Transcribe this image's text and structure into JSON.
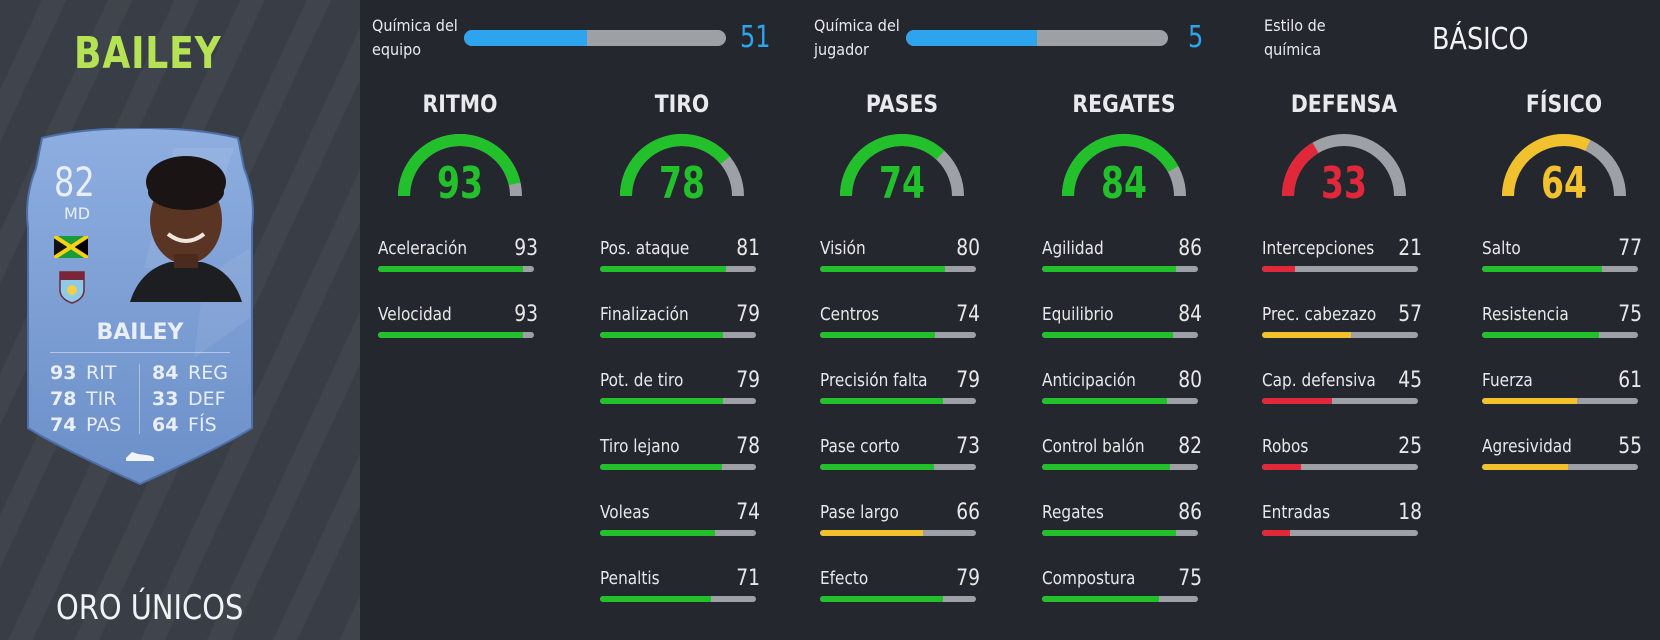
{
  "player": {
    "name": "BAILEY",
    "version": "ORO ÚNICOS",
    "card": {
      "rating": "82",
      "position": "MD",
      "name": "BAILEY",
      "stats_left": [
        {
          "value": "93",
          "label": "RIT"
        },
        {
          "value": "78",
          "label": "TIR"
        },
        {
          "value": "74",
          "label": "PAS"
        }
      ],
      "stats_right": [
        {
          "value": "84",
          "label": "REG"
        },
        {
          "value": "33",
          "label": "DEF"
        },
        {
          "value": "64",
          "label": "FÍS"
        }
      ]
    }
  },
  "chemistry": {
    "team": {
      "label_line1": "Química del",
      "label_line2": "equipo",
      "value": "51",
      "fill_fraction": 0.47
    },
    "player": {
      "label_line1": "Química del",
      "label_line2": "jugador",
      "value": "5",
      "fill_fraction": 0.5
    },
    "style": {
      "label_line1": "Estilo de",
      "label_line2": "química",
      "value": "BÁSICO"
    }
  },
  "colors": {
    "green": "#22c02a",
    "yellow": "#f2c12e",
    "red": "#e0283a",
    "blue": "#2ea4ee",
    "track": "#9da1a6"
  },
  "categories": [
    {
      "title": "RITMO",
      "value": "93",
      "color": "green",
      "stats": [
        {
          "label": "Aceleración",
          "value": "93",
          "color": "green"
        },
        {
          "label": "Velocidad",
          "value": "93",
          "color": "green"
        }
      ]
    },
    {
      "title": "TIRO",
      "value": "78",
      "color": "green",
      "stats": [
        {
          "label": "Pos. ataque",
          "value": "81",
          "color": "green"
        },
        {
          "label": "Finalización",
          "value": "79",
          "color": "green"
        },
        {
          "label": "Pot. de tiro",
          "value": "79",
          "color": "green"
        },
        {
          "label": "Tiro lejano",
          "value": "78",
          "color": "green"
        },
        {
          "label": "Voleas",
          "value": "74",
          "color": "green"
        },
        {
          "label": "Penaltis",
          "value": "71",
          "color": "green"
        }
      ]
    },
    {
      "title": "PASES",
      "value": "74",
      "color": "green",
      "stats": [
        {
          "label": "Visión",
          "value": "80",
          "color": "green"
        },
        {
          "label": "Centros",
          "value": "74",
          "color": "green"
        },
        {
          "label": "Precisión falta",
          "value": "79",
          "color": "green"
        },
        {
          "label": "Pase corto",
          "value": "73",
          "color": "green"
        },
        {
          "label": "Pase largo",
          "value": "66",
          "color": "yellow"
        },
        {
          "label": "Efecto",
          "value": "79",
          "color": "green"
        }
      ]
    },
    {
      "title": "REGATES",
      "value": "84",
      "color": "green",
      "stats": [
        {
          "label": "Agilidad",
          "value": "86",
          "color": "green"
        },
        {
          "label": "Equilibrio",
          "value": "84",
          "color": "green"
        },
        {
          "label": "Anticipación",
          "value": "80",
          "color": "green"
        },
        {
          "label": "Control balón",
          "value": "82",
          "color": "green"
        },
        {
          "label": "Regates",
          "value": "86",
          "color": "green"
        },
        {
          "label": "Compostura",
          "value": "75",
          "color": "green"
        }
      ]
    },
    {
      "title": "DEFENSA",
      "value": "33",
      "color": "red",
      "stats": [
        {
          "label": "Intercepciones",
          "value": "21",
          "color": "red"
        },
        {
          "label": "Prec. cabezazo",
          "value": "57",
          "color": "yellow"
        },
        {
          "label": "Cap. defensiva",
          "value": "45",
          "color": "red"
        },
        {
          "label": "Robos",
          "value": "25",
          "color": "red"
        },
        {
          "label": "Entradas",
          "value": "18",
          "color": "red"
        }
      ]
    },
    {
      "title": "FÍSICO",
      "value": "64",
      "color": "yellow",
      "stats": [
        {
          "label": "Salto",
          "value": "77",
          "color": "green"
        },
        {
          "label": "Resistencia",
          "value": "75",
          "color": "green"
        },
        {
          "label": "Fuerza",
          "value": "61",
          "color": "yellow"
        },
        {
          "label": "Agresividad",
          "value": "55",
          "color": "yellow"
        }
      ]
    }
  ]
}
